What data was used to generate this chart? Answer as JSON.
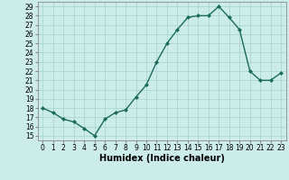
{
  "x": [
    0,
    1,
    2,
    3,
    4,
    5,
    6,
    7,
    8,
    9,
    10,
    11,
    12,
    13,
    14,
    15,
    16,
    17,
    18,
    19,
    20,
    21,
    22,
    23
  ],
  "y": [
    18,
    17.5,
    16.8,
    16.5,
    15.8,
    15,
    16.8,
    17.5,
    17.8,
    19.2,
    20.5,
    23,
    25,
    26.5,
    27.8,
    28,
    28,
    29,
    27.8,
    26.5,
    22,
    21,
    21,
    21.8
  ],
  "line_color": "#1a6b5a",
  "marker": "D",
  "marker_size": 2,
  "bg_color": "#ccecea",
  "grid_color": "#aad6d4",
  "xlabel": "Humidex (Indice chaleur)",
  "xlim": [
    -0.5,
    23.5
  ],
  "ylim": [
    14.5,
    29.5
  ],
  "yticks": [
    15,
    16,
    17,
    18,
    19,
    20,
    21,
    22,
    23,
    24,
    25,
    26,
    27,
    28,
    29
  ],
  "xticks": [
    0,
    1,
    2,
    3,
    4,
    5,
    6,
    7,
    8,
    9,
    10,
    11,
    12,
    13,
    14,
    15,
    16,
    17,
    18,
    19,
    20,
    21,
    22,
    23
  ],
  "tick_fontsize": 5.5,
  "xlabel_fontsize": 7,
  "line_width": 1.0
}
